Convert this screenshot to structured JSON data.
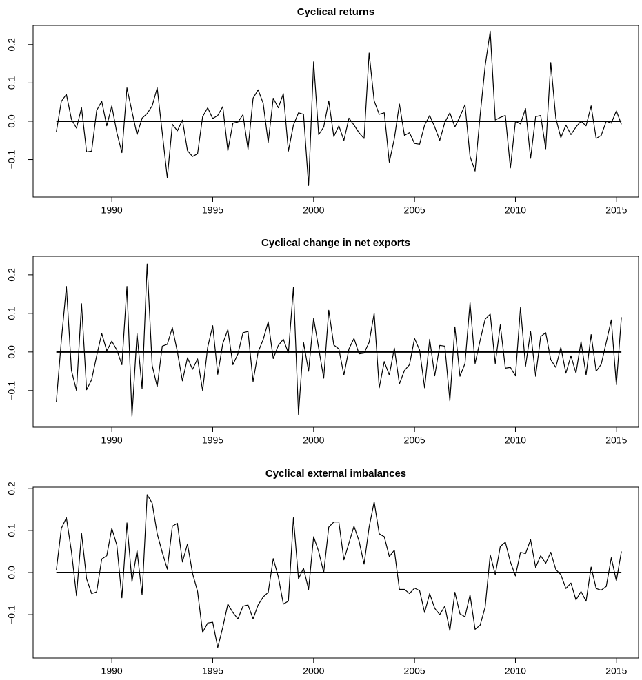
{
  "chart_data": [
    {
      "type": "line",
      "title": "Cyclical returns",
      "x": [
        1987.25,
        1987.5,
        1987.75,
        1988,
        1988.25,
        1988.5,
        1988.75,
        1989,
        1989.25,
        1989.5,
        1989.75,
        1990,
        1990.25,
        1990.5,
        1990.75,
        1991,
        1991.25,
        1991.5,
        1991.75,
        1992,
        1992.25,
        1992.5,
        1992.75,
        1993,
        1993.25,
        1993.5,
        1993.75,
        1994,
        1994.25,
        1994.5,
        1994.75,
        1995,
        1995.25,
        1995.5,
        1995.75,
        1996,
        1996.25,
        1996.5,
        1996.75,
        1997,
        1997.25,
        1997.5,
        1997.75,
        1998,
        1998.25,
        1998.5,
        1998.75,
        1999,
        1999.25,
        1999.5,
        1999.75,
        2000,
        2000.25,
        2000.5,
        2000.75,
        2001,
        2001.25,
        2001.5,
        2001.75,
        2002,
        2002.25,
        2002.5,
        2002.75,
        2003,
        2003.25,
        2003.5,
        2003.75,
        2004,
        2004.25,
        2004.5,
        2004.75,
        2005,
        2005.25,
        2005.5,
        2005.75,
        2006,
        2006.25,
        2006.5,
        2006.75,
        2007,
        2007.25,
        2007.5,
        2007.75,
        2008,
        2008.25,
        2008.5,
        2008.75,
        2009,
        2009.25,
        2009.5,
        2009.75,
        2010,
        2010.25,
        2010.5,
        2010.75,
        2011,
        2011.25,
        2011.5,
        2011.75,
        2012,
        2012.25,
        2012.5,
        2012.75,
        2013,
        2013.25,
        2013.5,
        2013.75,
        2014,
        2014.25,
        2014.5,
        2014.75,
        2015,
        2015.25
      ],
      "values": [
        -0.028,
        0.052,
        0.07,
        0.005,
        -0.018,
        0.035,
        -0.08,
        -0.078,
        0.028,
        0.052,
        -0.012,
        0.04,
        -0.03,
        -0.082,
        0.087,
        0.025,
        -0.035,
        0.008,
        0.02,
        0.04,
        0.087,
        -0.03,
        -0.148,
        -0.008,
        -0.025,
        0.003,
        -0.077,
        -0.092,
        -0.085,
        0.012,
        0.035,
        0.007,
        0.015,
        0.038,
        -0.077,
        -0.005,
        -0.002,
        0.017,
        -0.073,
        0.06,
        0.082,
        0.047,
        -0.055,
        0.06,
        0.035,
        0.072,
        -0.078,
        -0.01,
        0.022,
        0.018,
        -0.168,
        0.155,
        -0.035,
        -0.015,
        0.053,
        -0.04,
        -0.012,
        -0.05,
        0.008,
        -0.01,
        -0.03,
        -0.045,
        0.178,
        0.053,
        0.018,
        0.022,
        -0.107,
        -0.045,
        0.045,
        -0.037,
        -0.03,
        -0.058,
        -0.06,
        -0.01,
        0.015,
        -0.015,
        -0.05,
        -0.003,
        0.022,
        -0.015,
        0.012,
        0.043,
        -0.092,
        -0.13,
        0.015,
        0.145,
        0.235,
        0.003,
        0.01,
        0.015,
        -0.122,
        0,
        -0.007,
        0.033,
        -0.097,
        0.012,
        0.015,
        -0.072,
        0.153,
        0.008,
        -0.043,
        -0.01,
        -0.035,
        -0.015,
        0,
        -0.012,
        0.04,
        -0.045,
        -0.037,
        0,
        -0.005,
        0.027,
        -0.008
      ],
      "color": "#000000",
      "hline": 0,
      "xlim": [
        1986.1,
        2016.1
      ],
      "xticks": [
        1990,
        1995,
        2000,
        2005,
        2010,
        2015
      ],
      "ylim": [
        -0.198,
        0.25
      ],
      "yticks": [
        {
          "value": -0.1,
          "label": "−0.1"
        },
        {
          "value": 0,
          "label": "0.0"
        },
        0.1,
        0.2
      ]
    },
    {
      "type": "line",
      "title": "Cyclical change in net exports",
      "x": [
        1987.25,
        1987.5,
        1987.75,
        1988,
        1988.25,
        1988.5,
        1988.75,
        1989,
        1989.25,
        1989.5,
        1989.75,
        1990,
        1990.25,
        1990.5,
        1990.75,
        1991,
        1991.25,
        1991.5,
        1991.75,
        1992,
        1992.25,
        1992.5,
        1992.75,
        1993,
        1993.25,
        1993.5,
        1993.75,
        1994,
        1994.25,
        1994.5,
        1994.75,
        1995,
        1995.25,
        1995.5,
        1995.75,
        1996,
        1996.25,
        1996.5,
        1996.75,
        1997,
        1997.25,
        1997.5,
        1997.75,
        1998,
        1998.25,
        1998.5,
        1998.75,
        1999,
        1999.25,
        1999.5,
        1999.75,
        2000,
        2000.25,
        2000.5,
        2000.75,
        2001,
        2001.25,
        2001.5,
        2001.75,
        2002,
        2002.25,
        2002.5,
        2002.75,
        2003,
        2003.25,
        2003.5,
        2003.75,
        2004,
        2004.25,
        2004.5,
        2004.75,
        2005,
        2005.25,
        2005.5,
        2005.75,
        2006,
        2006.25,
        2006.5,
        2006.75,
        2007,
        2007.25,
        2007.5,
        2007.75,
        2008,
        2008.25,
        2008.5,
        2008.75,
        2009,
        2009.25,
        2009.5,
        2009.75,
        2010,
        2010.25,
        2010.5,
        2010.75,
        2011,
        2011.25,
        2011.5,
        2011.75,
        2012,
        2012.25,
        2012.5,
        2012.75,
        2013,
        2013.25,
        2013.5,
        2013.75,
        2014,
        2014.25,
        2014.5,
        2014.75,
        2015,
        2015.25
      ],
      "values": [
        -0.13,
        0.03,
        0.17,
        -0.048,
        -0.1,
        0.125,
        -0.098,
        -0.072,
        -0.01,
        0.048,
        0.003,
        0.028,
        0.005,
        -0.033,
        0.17,
        -0.167,
        0.048,
        -0.095,
        0.228,
        -0.035,
        -0.09,
        0.015,
        0.02,
        0.063,
        0,
        -0.075,
        -0.015,
        -0.045,
        -0.018,
        -0.1,
        0.012,
        0.068,
        -0.058,
        0.022,
        0.058,
        -0.033,
        -0.005,
        0.05,
        0.053,
        -0.077,
        0,
        0.032,
        0.078,
        -0.017,
        0.017,
        0.033,
        -0.003,
        0.167,
        -0.162,
        0.025,
        -0.05,
        0.087,
        0.01,
        -0.068,
        0.108,
        0.018,
        0.008,
        -0.06,
        0.008,
        0.035,
        -0.005,
        -0.003,
        0.025,
        0.1,
        -0.093,
        -0.025,
        -0.06,
        0.01,
        -0.083,
        -0.048,
        -0.033,
        0.035,
        0.005,
        -0.093,
        0.033,
        -0.062,
        0.017,
        0.015,
        -0.127,
        0.065,
        -0.063,
        -0.03,
        0.128,
        -0.03,
        0.03,
        0.085,
        0.098,
        -0.03,
        0.07,
        -0.042,
        -0.04,
        -0.062,
        0.115,
        -0.037,
        0.053,
        -0.063,
        0.04,
        0.05,
        -0.02,
        -0.04,
        0.012,
        -0.055,
        -0.01,
        -0.055,
        0.027,
        -0.06,
        0.045,
        -0.05,
        -0.032,
        0.025,
        0.083,
        -0.085,
        0.09
      ],
      "color": "#000000",
      "hline": 0,
      "xlim": [
        1986.1,
        2016.1
      ],
      "xticks": [
        1990,
        1995,
        2000,
        2005,
        2010,
        2015
      ],
      "ylim": [
        -0.195,
        0.248
      ],
      "yticks": [
        {
          "value": -0.1,
          "label": "−0.1"
        },
        {
          "value": 0,
          "label": "0.0"
        },
        0.1,
        0.2
      ]
    },
    {
      "type": "line",
      "title": "Cyclical external imbalances",
      "x": [
        1987.25,
        1987.5,
        1987.75,
        1988,
        1988.25,
        1988.5,
        1988.75,
        1989,
        1989.25,
        1989.5,
        1989.75,
        1990,
        1990.25,
        1990.5,
        1990.75,
        1991,
        1991.25,
        1991.5,
        1991.75,
        1992,
        1992.25,
        1992.5,
        1992.75,
        1993,
        1993.25,
        1993.5,
        1993.75,
        1994,
        1994.25,
        1994.5,
        1994.75,
        1995,
        1995.25,
        1995.5,
        1995.75,
        1996,
        1996.25,
        1996.5,
        1996.75,
        1997,
        1997.25,
        1997.5,
        1997.75,
        1998,
        1998.25,
        1998.5,
        1998.75,
        1999,
        1999.25,
        1999.5,
        1999.75,
        2000,
        2000.25,
        2000.5,
        2000.75,
        2001,
        2001.25,
        2001.5,
        2001.75,
        2002,
        2002.25,
        2002.5,
        2002.75,
        2003,
        2003.25,
        2003.5,
        2003.75,
        2004,
        2004.25,
        2004.5,
        2004.75,
        2005,
        2005.25,
        2005.5,
        2005.75,
        2006,
        2006.25,
        2006.5,
        2006.75,
        2007,
        2007.25,
        2007.5,
        2007.75,
        2008,
        2008.25,
        2008.5,
        2008.75,
        2009,
        2009.25,
        2009.5,
        2009.75,
        2010,
        2010.25,
        2010.5,
        2010.75,
        2011,
        2011.25,
        2011.5,
        2011.75,
        2012,
        2012.25,
        2012.5,
        2012.75,
        2013,
        2013.25,
        2013.5,
        2013.75,
        2014,
        2014.25,
        2014.5,
        2014.75,
        2015,
        2015.25
      ],
      "values": [
        0.005,
        0.105,
        0.13,
        0.05,
        -0.055,
        0.093,
        -0.015,
        -0.05,
        -0.046,
        0.032,
        0.04,
        0.105,
        0.065,
        -0.06,
        0.118,
        -0.022,
        0.052,
        -0.053,
        0.185,
        0.165,
        0.092,
        0.048,
        0.008,
        0.11,
        0.117,
        0.025,
        0.068,
        -0.002,
        -0.045,
        -0.142,
        -0.12,
        -0.118,
        -0.178,
        -0.13,
        -0.075,
        -0.095,
        -0.11,
        -0.08,
        -0.077,
        -0.11,
        -0.077,
        -0.058,
        -0.047,
        0.033,
        -0.01,
        -0.075,
        -0.068,
        0.13,
        -0.015,
        0.01,
        -0.04,
        0.085,
        0.05,
        0,
        0.108,
        0.12,
        0.12,
        0.03,
        0.07,
        0.11,
        0.075,
        0.02,
        0.108,
        0.168,
        0.092,
        0.085,
        0.038,
        0.053,
        -0.04,
        -0.04,
        -0.05,
        -0.037,
        -0.043,
        -0.095,
        -0.05,
        -0.085,
        -0.1,
        -0.08,
        -0.138,
        -0.047,
        -0.098,
        -0.105,
        -0.053,
        -0.135,
        -0.125,
        -0.082,
        0.042,
        -0.005,
        0.062,
        0.072,
        0.025,
        -0.008,
        0.048,
        0.045,
        0.078,
        0.012,
        0.04,
        0.022,
        0.048,
        0.007,
        -0.005,
        -0.038,
        -0.025,
        -0.065,
        -0.045,
        -0.068,
        0.013,
        -0.038,
        -0.042,
        -0.033,
        0.035,
        -0.02,
        0.05
      ],
      "color": "#000000",
      "hline": 0,
      "xlim": [
        1986.1,
        2016.1
      ],
      "xticks": [
        1990,
        1995,
        2000,
        2005,
        2010,
        2015
      ],
      "ylim": [
        -0.203,
        0.203
      ],
      "yticks": [
        {
          "value": -0.1,
          "label": "−0.1"
        },
        {
          "value": 0,
          "label": "0.0"
        },
        0.1,
        0.2
      ]
    }
  ]
}
